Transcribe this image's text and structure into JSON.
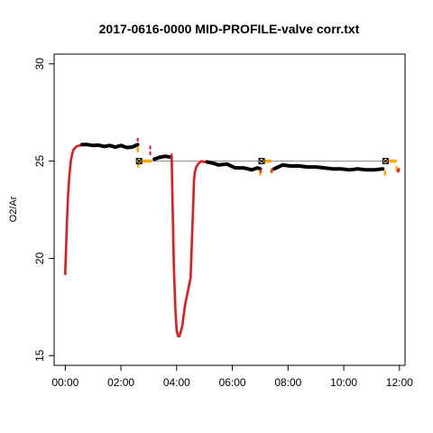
{
  "chart_data": {
    "type": "line",
    "title": "2017-0616-0000 MID-PROFILE-valve corr.txt",
    "xlabel": "",
    "ylabel": "O2/Ar",
    "xlim": [
      -0.4,
      12.2
    ],
    "ylim": [
      14.5,
      30.5
    ],
    "x_ticks": [
      {
        "value": 0,
        "label": "00:00"
      },
      {
        "value": 2,
        "label": "02:00"
      },
      {
        "value": 4,
        "label": "04:00"
      },
      {
        "value": 6,
        "label": "06:00"
      },
      {
        "value": 8,
        "label": "08:00"
      },
      {
        "value": 10,
        "label": "10:00"
      },
      {
        "value": 12,
        "label": "12:00"
      }
    ],
    "y_ticks": [
      {
        "value": 15,
        "label": "15"
      },
      {
        "value": 20,
        "label": "20"
      },
      {
        "value": 25,
        "label": "25"
      },
      {
        "value": 30,
        "label": "30"
      }
    ],
    "reference_line": {
      "y": 25.0,
      "x_start": 2.6,
      "x_end": 11.6,
      "color": "#888888"
    },
    "colors": {
      "main": "#000000",
      "correction": "#e41a1c",
      "valve": "#ffa500",
      "marker": "#000000"
    },
    "series": [
      {
        "kind": "correction",
        "color": "#e41a1c",
        "x": [
          0.0,
          0.05,
          0.1,
          0.15,
          0.2,
          0.25,
          0.3,
          0.4,
          0.5,
          0.6
        ],
        "y": [
          19.2,
          21.5,
          23.2,
          24.3,
          25.0,
          25.4,
          25.6,
          25.75,
          25.8,
          25.82
        ]
      },
      {
        "kind": "main",
        "color": "#000000",
        "x": [
          0.6,
          0.8,
          1.0,
          1.2,
          1.4,
          1.6,
          1.8,
          2.0,
          2.2,
          2.4,
          2.6
        ],
        "y": [
          25.85,
          25.85,
          25.8,
          25.82,
          25.75,
          25.8,
          25.72,
          25.8,
          25.7,
          25.72,
          25.85
        ]
      },
      {
        "kind": "main",
        "color": "#000000",
        "x": [
          3.2,
          3.4,
          3.6,
          3.8
        ],
        "y": [
          25.1,
          25.2,
          25.25,
          25.2
        ]
      },
      {
        "kind": "correction",
        "color": "#e41a1c",
        "x": [
          3.82,
          3.85,
          3.88,
          3.9,
          3.95,
          4.0,
          4.05,
          4.1,
          4.2,
          4.3,
          4.4,
          4.5,
          4.55,
          4.6,
          4.62,
          4.65,
          4.7,
          4.8,
          4.9,
          5.0,
          5.1
        ],
        "y": [
          25.2,
          23.0,
          21.0,
          19.5,
          17.5,
          16.3,
          16.0,
          16.0,
          16.5,
          17.6,
          18.3,
          19.0,
          21.0,
          23.0,
          24.0,
          24.4,
          24.7,
          24.9,
          25.0,
          24.95,
          25.0
        ]
      },
      {
        "kind": "main",
        "color": "#000000",
        "x": [
          5.1,
          5.3,
          5.5,
          5.8,
          6.1,
          6.4,
          6.7,
          6.9,
          7.0
        ],
        "y": [
          24.95,
          24.9,
          24.8,
          24.85,
          24.65,
          24.65,
          24.55,
          24.65,
          24.6
        ]
      },
      {
        "kind": "main",
        "color": "#000000",
        "x": [
          7.5,
          7.8,
          8.1,
          8.4,
          8.7,
          9.0,
          9.3,
          9.6,
          9.9,
          10.2,
          10.5,
          10.8,
          11.1,
          11.4
        ],
        "y": [
          24.6,
          24.8,
          24.75,
          24.75,
          24.7,
          24.7,
          24.65,
          24.6,
          24.6,
          24.55,
          24.6,
          24.55,
          24.55,
          24.6
        ]
      }
    ],
    "valve_segments": [
      {
        "x": [
          2.6,
          3.1
        ],
        "y": [
          25.0,
          25.0
        ]
      },
      {
        "x": [
          7.05,
          7.4
        ],
        "y": [
          25.0,
          25.0
        ]
      },
      {
        "x": [
          11.5,
          11.9
        ],
        "y": [
          25.0,
          25.0
        ]
      }
    ],
    "valve_points": [
      {
        "x": 2.6,
        "y": 25.6
      },
      {
        "x": 2.62,
        "y": 24.8
      },
      {
        "x": 7.0,
        "y": 24.4
      },
      {
        "x": 7.4,
        "y": 24.5
      },
      {
        "x": 11.9,
        "y": 24.6
      },
      {
        "x": 11.48,
        "y": 24.4
      }
    ],
    "red_points": [
      {
        "x": 2.6,
        "y": 26.1
      },
      {
        "x": 3.05,
        "y": 25.7
      },
      {
        "x": 3.05,
        "y": 25.4
      },
      {
        "x": 3.82,
        "y": 25.3
      },
      {
        "x": 7.02,
        "y": 24.5
      },
      {
        "x": 7.42,
        "y": 24.5
      },
      {
        "x": 11.95,
        "y": 24.5
      },
      {
        "x": 11.98,
        "y": 24.55
      }
    ],
    "box_markers": [
      {
        "x": 2.65,
        "y": 25.0
      },
      {
        "x": 7.05,
        "y": 25.0
      },
      {
        "x": 11.5,
        "y": 25.0
      }
    ]
  }
}
